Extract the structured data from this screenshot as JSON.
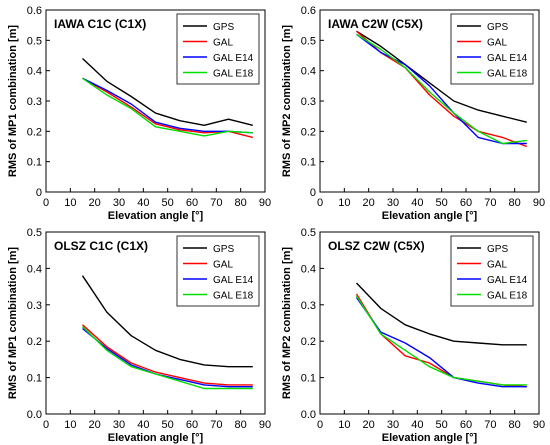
{
  "chart_data": [
    {
      "type": "line",
      "title": "IAWA C1C (C1X)",
      "xlabel": "Elevation angle [°]",
      "ylabel": "RMS of MP1 combination [m]",
      "xlim": [
        0,
        90
      ],
      "ylim": [
        0,
        0.6
      ],
      "xticks": [
        0,
        10,
        20,
        30,
        40,
        50,
        60,
        70,
        80,
        90
      ],
      "yticks": [
        0,
        0.1,
        0.2,
        0.3,
        0.4,
        0.5,
        0.6
      ],
      "ytick_labels": [
        "0",
        "0.1",
        "0.2",
        "0.3",
        "0.4",
        "0.5",
        "0.6"
      ],
      "grid": false,
      "legend_position": "top-right",
      "x": [
        15,
        25,
        35,
        45,
        55,
        65,
        75,
        85
      ],
      "series": [
        {
          "name": "GPS",
          "color": "#000000",
          "values": [
            0.44,
            0.365,
            0.315,
            0.26,
            0.235,
            0.22,
            0.24,
            0.22
          ]
        },
        {
          "name": "GAL",
          "color": "#ff0000",
          "values": [
            0.375,
            0.33,
            0.28,
            0.225,
            0.205,
            0.195,
            0.2,
            0.18
          ]
        },
        {
          "name": "GAL E14",
          "color": "#0000ff",
          "values": [
            0.375,
            0.335,
            0.29,
            0.23,
            0.21,
            0.2,
            0.2,
            0.195
          ]
        },
        {
          "name": "GAL E18",
          "color": "#00dd00",
          "values": [
            0.375,
            0.32,
            0.275,
            0.215,
            0.2,
            0.185,
            0.2,
            0.195
          ]
        }
      ]
    },
    {
      "type": "line",
      "title": "IAWA C2W (C5X)",
      "xlabel": "Elevation angle [°]",
      "ylabel": "RMS of MP2 combination [m]",
      "xlim": [
        0,
        90
      ],
      "ylim": [
        0,
        0.6
      ],
      "xticks": [
        0,
        10,
        20,
        30,
        40,
        50,
        60,
        70,
        80,
        90
      ],
      "yticks": [
        0,
        0.1,
        0.2,
        0.3,
        0.4,
        0.5,
        0.6
      ],
      "ytick_labels": [
        "0",
        "0.1",
        "0.2",
        "0.3",
        "0.4",
        "0.5",
        "0.6"
      ],
      "grid": false,
      "legend_position": "top-right",
      "x": [
        15,
        25,
        35,
        45,
        55,
        65,
        75,
        85
      ],
      "series": [
        {
          "name": "GPS",
          "color": "#000000",
          "values": [
            0.53,
            0.48,
            0.42,
            0.36,
            0.3,
            0.27,
            0.25,
            0.23
          ]
        },
        {
          "name": "GAL",
          "color": "#ff0000",
          "values": [
            0.53,
            0.46,
            0.41,
            0.32,
            0.25,
            0.2,
            0.18,
            0.15
          ]
        },
        {
          "name": "GAL E14",
          "color": "#0000ff",
          "values": [
            0.52,
            0.46,
            0.42,
            0.35,
            0.26,
            0.18,
            0.16,
            0.16
          ]
        },
        {
          "name": "GAL E18",
          "color": "#00dd00",
          "values": [
            0.52,
            0.47,
            0.41,
            0.33,
            0.26,
            0.2,
            0.16,
            0.17
          ]
        }
      ]
    },
    {
      "type": "line",
      "title": "OLSZ C1C (C1X)",
      "xlabel": "Elevation angle [°]",
      "ylabel": "RMS of MP1 combination [m]",
      "xlim": [
        0,
        90
      ],
      "ylim": [
        0,
        0.5
      ],
      "xticks": [
        0,
        10,
        20,
        30,
        40,
        50,
        60,
        70,
        80,
        90
      ],
      "yticks": [
        0,
        0.1,
        0.2,
        0.3,
        0.4,
        0.5
      ],
      "ytick_labels": [
        "0.0",
        "0.1",
        "0.2",
        "0.3",
        "0.4",
        "0.5"
      ],
      "grid": false,
      "legend_position": "top-right",
      "x": [
        15,
        25,
        35,
        45,
        55,
        65,
        75,
        85
      ],
      "series": [
        {
          "name": "GPS",
          "color": "#000000",
          "values": [
            0.38,
            0.28,
            0.215,
            0.175,
            0.15,
            0.135,
            0.13,
            0.13
          ]
        },
        {
          "name": "GAL",
          "color": "#ff0000",
          "values": [
            0.245,
            0.185,
            0.14,
            0.115,
            0.1,
            0.085,
            0.08,
            0.08
          ]
        },
        {
          "name": "GAL E14",
          "color": "#0000ff",
          "values": [
            0.235,
            0.18,
            0.135,
            0.11,
            0.095,
            0.08,
            0.075,
            0.075
          ]
        },
        {
          "name": "GAL E18",
          "color": "#00dd00",
          "values": [
            0.24,
            0.175,
            0.13,
            0.11,
            0.09,
            0.07,
            0.07,
            0.07
          ]
        }
      ]
    },
    {
      "type": "line",
      "title": "OLSZ C2W (C5X)",
      "xlabel": "Elevation angle [°]",
      "ylabel": "RMS of MP2 combination [m]",
      "xlim": [
        0,
        90
      ],
      "ylim": [
        0,
        0.5
      ],
      "xticks": [
        0,
        10,
        20,
        30,
        40,
        50,
        60,
        70,
        80,
        90
      ],
      "yticks": [
        0,
        0.1,
        0.2,
        0.3,
        0.4,
        0.5
      ],
      "ytick_labels": [
        "0.0",
        "0.1",
        "0.2",
        "0.3",
        "0.4",
        "0.5"
      ],
      "grid": false,
      "legend_position": "top-right",
      "x": [
        15,
        25,
        35,
        45,
        55,
        65,
        75,
        85
      ],
      "series": [
        {
          "name": "GPS",
          "color": "#000000",
          "values": [
            0.36,
            0.29,
            0.245,
            0.22,
            0.2,
            0.195,
            0.19,
            0.19
          ]
        },
        {
          "name": "GAL",
          "color": "#ff0000",
          "values": [
            0.33,
            0.22,
            0.16,
            0.14,
            0.1,
            0.09,
            0.08,
            0.075
          ]
        },
        {
          "name": "GAL E14",
          "color": "#0000ff",
          "values": [
            0.32,
            0.225,
            0.195,
            0.155,
            0.1,
            0.085,
            0.075,
            0.075
          ]
        },
        {
          "name": "GAL E18",
          "color": "#00dd00",
          "values": [
            0.325,
            0.22,
            0.175,
            0.13,
            0.1,
            0.09,
            0.08,
            0.08
          ]
        }
      ]
    }
  ]
}
